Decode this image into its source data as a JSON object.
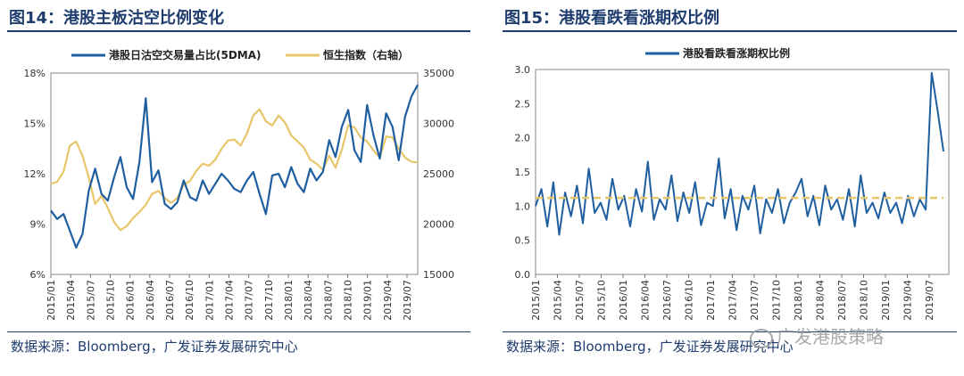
{
  "fig14": {
    "title": "图14：港股主板沽空比例变化",
    "source": "数据来源：Bloomberg，广发证券发展研究中心",
    "chart_data": {
      "type": "line",
      "title": "港股主板沽空比例变化",
      "x_ticks": [
        "2015/01",
        "2015/04",
        "2015/07",
        "2015/10",
        "2016/01",
        "2016/04",
        "2016/07",
        "2016/10",
        "2017/01",
        "2017/04",
        "2017/07",
        "2017/10",
        "2018/01",
        "2018/04",
        "2018/07",
        "2018/10",
        "2019/01",
        "2019/04",
        "2019/07"
      ],
      "y_left": {
        "ticks": [
          "6%",
          "9%",
          "12%",
          "15%",
          "18%"
        ],
        "range": [
          6,
          18
        ],
        "unit": "%"
      },
      "y_right": {
        "ticks": [
          "15000",
          "20000",
          "25000",
          "30000",
          "35000"
        ],
        "range": [
          15000,
          35000
        ]
      },
      "series": [
        {
          "name": "港股日沽空交易量占比(5DMA)",
          "axis": "left",
          "color": "#1f5fa0",
          "values": [
            9.8,
            9.3,
            9.6,
            8.6,
            7.6,
            8.4,
            11.0,
            12.3,
            10.8,
            10.4,
            11.8,
            13.0,
            11.2,
            10.5,
            12.7,
            16.5,
            11.5,
            12.2,
            10.2,
            9.9,
            10.3,
            11.6,
            10.6,
            10.4,
            11.6,
            10.8,
            11.4,
            12.0,
            11.6,
            11.1,
            10.9,
            11.6,
            12.1,
            10.8,
            9.6,
            11.9,
            12.0,
            11.2,
            12.4,
            11.4,
            10.9,
            12.3,
            11.6,
            12.1,
            14.0,
            13.0,
            14.8,
            15.8,
            13.4,
            12.7,
            16.1,
            14.3,
            12.9,
            15.6,
            14.8,
            12.8,
            15.4,
            16.6,
            17.3
          ]
        },
        {
          "name": "恒生指数（右轴）",
          "axis": "right",
          "color": "#e8c66a",
          "values": [
            24000,
            24200,
            25200,
            27800,
            28200,
            26800,
            24600,
            22000,
            22800,
            21600,
            20200,
            19400,
            19800,
            20600,
            21200,
            21900,
            23000,
            23300,
            22600,
            22100,
            22600,
            23900,
            24300,
            25300,
            26000,
            25800,
            26400,
            27500,
            28300,
            28400,
            27800,
            29000,
            30800,
            31400,
            30200,
            29800,
            30800,
            30100,
            28800,
            28200,
            27600,
            26400,
            26000,
            25400,
            26800,
            25600,
            27400,
            29800,
            29600,
            28600,
            28200,
            27300,
            26600,
            28700,
            28600,
            27500,
            26600,
            26200,
            26100
          ]
        }
      ],
      "legend": "top"
    }
  },
  "fig15": {
    "title": "图15：港股看跌看涨期权比例",
    "source": "数据来源：Bloomberg，广发证券发展研究中心",
    "chart_data": {
      "type": "line",
      "title": "港股看跌看涨期权比例",
      "x_ticks": [
        "2015/01",
        "2015/04",
        "2015/07",
        "2015/10",
        "2016/01",
        "2016/04",
        "2016/07",
        "2016/10",
        "2017/01",
        "2017/04",
        "2017/07",
        "2017/10",
        "2018/01",
        "2018/04",
        "2018/07",
        "2018/10",
        "2019/01",
        "2019/04",
        "2019/07"
      ],
      "y_left": {
        "ticks": [
          "0.0",
          "0.5",
          "1.0",
          "1.5",
          "2.0",
          "2.5",
          "3.0"
        ],
        "range": [
          0,
          3
        ]
      },
      "series": [
        {
          "name": "港股看跌看涨期权比例",
          "color": "#1f5fa0",
          "values": [
            1.0,
            1.25,
            0.7,
            1.35,
            0.58,
            1.2,
            0.85,
            1.3,
            0.75,
            1.55,
            0.9,
            1.05,
            0.8,
            1.4,
            0.95,
            1.15,
            0.7,
            1.25,
            0.92,
            1.65,
            0.8,
            1.1,
            0.95,
            1.45,
            0.78,
            1.2,
            0.9,
            1.35,
            0.72,
            1.05,
            1.0,
            1.7,
            0.82,
            1.25,
            0.65,
            1.15,
            0.95,
            1.3,
            0.6,
            1.1,
            0.9,
            1.25,
            0.75,
            1.05,
            1.2,
            1.4,
            0.85,
            1.15,
            0.72,
            1.3,
            0.95,
            1.1,
            0.8,
            1.25,
            0.7,
            1.45,
            0.9,
            1.05,
            0.82,
            1.2,
            0.9,
            1.05,
            0.75,
            1.15,
            0.85,
            1.1,
            0.95,
            2.95,
            2.4,
            1.8
          ]
        }
      ],
      "reference_line": {
        "value": 1.12,
        "color": "#e8c66a",
        "style": "dashed"
      },
      "legend": "top"
    }
  },
  "watermark": "广发港股策略"
}
